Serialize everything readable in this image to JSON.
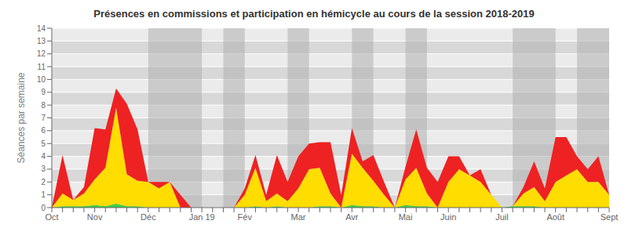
{
  "chart_data": {
    "type": "area",
    "title": "Présences en commissions et participation en hémicycle au cours de la session 2018-2019",
    "ylabel": "Séances par semaine",
    "stacked": true,
    "grid": true,
    "ylim": [
      0,
      14
    ],
    "yticks": [
      0,
      1,
      2,
      3,
      4,
      5,
      6,
      7,
      8,
      9,
      10,
      11,
      12,
      13,
      14
    ],
    "categories": [
      "Oct",
      null,
      null,
      null,
      "Nov",
      null,
      null,
      null,
      null,
      "Déc",
      null,
      null,
      null,
      null,
      "Jan 19",
      null,
      null,
      null,
      "Fév",
      null,
      null,
      null,
      null,
      "Mar",
      null,
      null,
      null,
      null,
      "Avr",
      null,
      null,
      null,
      null,
      "Mai",
      null,
      null,
      null,
      "Juin",
      null,
      null,
      null,
      null,
      "Juil",
      null,
      null,
      null,
      null,
      "Août",
      null,
      null,
      null,
      null,
      "Sept"
    ],
    "shaded_spans": [
      [
        9,
        14
      ],
      [
        16,
        18
      ],
      [
        22,
        24
      ],
      [
        28,
        30
      ],
      [
        33,
        35
      ],
      [
        43,
        47
      ],
      [
        49,
        52
      ]
    ],
    "series": [
      {
        "color": "#44cc44",
        "values": [
          0,
          0.1,
          0.1,
          0.1,
          0.2,
          0.1,
          0.3,
          0.1,
          0.1,
          0,
          0,
          0,
          0,
          0,
          0,
          0,
          0,
          0,
          0,
          0.1,
          0,
          0.1,
          0,
          0,
          0,
          0.1,
          0.1,
          0,
          0.2,
          0.1,
          0.1,
          0,
          0,
          0.2,
          0.1,
          0.1,
          0,
          0,
          0,
          0,
          0,
          0,
          0,
          0.1,
          0.1,
          0.1,
          0,
          0,
          0,
          0,
          0,
          0,
          0
        ]
      },
      {
        "color": "#ffdd00",
        "values": [
          0,
          1,
          0.5,
          1,
          2,
          3,
          7.5,
          2.5,
          2,
          2,
          1.5,
          2,
          0,
          0,
          0,
          0,
          0,
          0,
          1,
          3,
          0.5,
          1,
          0.5,
          1.5,
          3,
          3,
          1,
          0,
          4,
          3,
          2,
          1,
          0,
          2,
          3,
          1,
          0,
          2,
          3,
          2.5,
          2,
          1,
          0,
          0,
          1,
          1.5,
          0.5,
          2,
          2.5,
          3,
          2,
          2,
          1
        ]
      },
      {
        "color": "#ee2222",
        "values": [
          0,
          3,
          0,
          0.5,
          4,
          3,
          1.5,
          5.5,
          4,
          0,
          0.5,
          0,
          1,
          0,
          0,
          0,
          0,
          0,
          0.5,
          1,
          0.5,
          3,
          1.5,
          2.5,
          2,
          2,
          4,
          1,
          2,
          0.5,
          2,
          1,
          0,
          1,
          3,
          2,
          2,
          2,
          1,
          0,
          1,
          0,
          0,
          0,
          0.5,
          2,
          1,
          3.5,
          3,
          1,
          1,
          2,
          0
        ]
      }
    ]
  }
}
